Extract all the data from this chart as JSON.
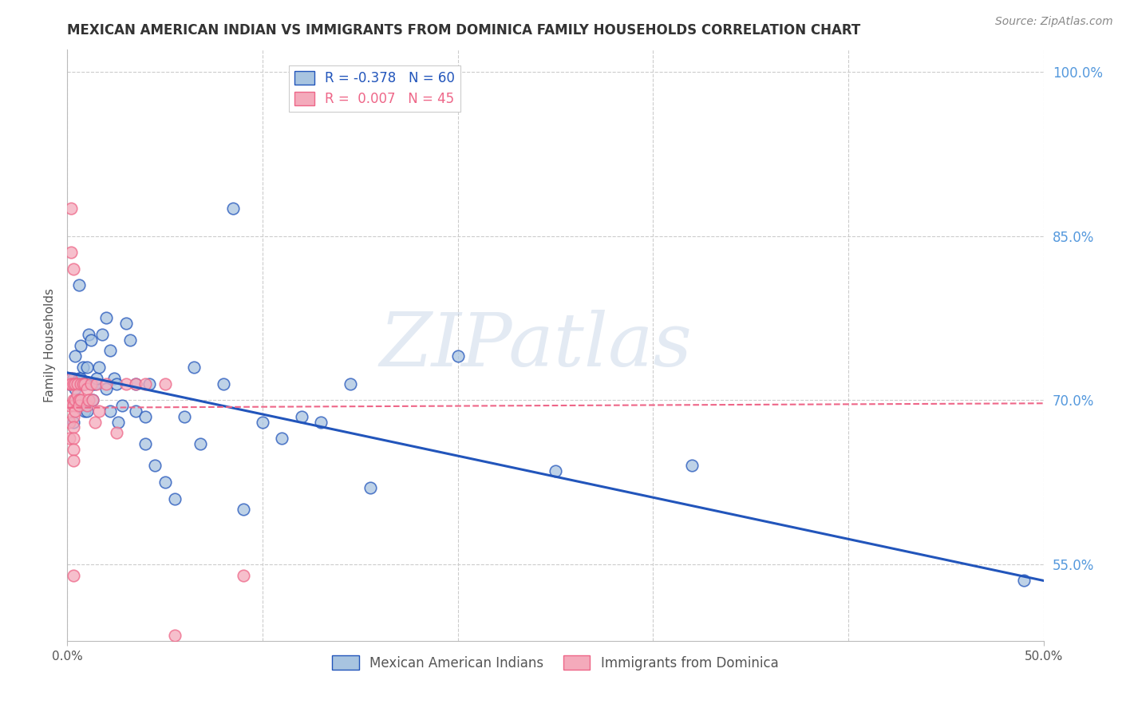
{
  "title": "MEXICAN AMERICAN INDIAN VS IMMIGRANTS FROM DOMINICA FAMILY HOUSEHOLDS CORRELATION CHART",
  "source": "Source: ZipAtlas.com",
  "ylabel": "Family Households",
  "watermark": "ZIPatlas",
  "legend_blue_r": "-0.378",
  "legend_blue_n": "60",
  "legend_pink_r": "0.007",
  "legend_pink_n": "45",
  "blue_color": "#A8C4E0",
  "pink_color": "#F4AABB",
  "blue_line_color": "#2255BB",
  "pink_line_color": "#EE6688",
  "grid_color": "#CCCCCC",
  "title_color": "#333333",
  "right_axis_color": "#5599DD",
  "blue_scatter": [
    [
      0.001,
      0.715
    ],
    [
      0.002,
      0.72
    ],
    [
      0.003,
      0.68
    ],
    [
      0.003,
      0.72
    ],
    [
      0.004,
      0.74
    ],
    [
      0.004,
      0.71
    ],
    [
      0.005,
      0.7
    ],
    [
      0.005,
      0.715
    ],
    [
      0.006,
      0.805
    ],
    [
      0.006,
      0.72
    ],
    [
      0.007,
      0.75
    ],
    [
      0.007,
      0.72
    ],
    [
      0.008,
      0.715
    ],
    [
      0.008,
      0.73
    ],
    [
      0.009,
      0.715
    ],
    [
      0.009,
      0.69
    ],
    [
      0.01,
      0.73
    ],
    [
      0.01,
      0.69
    ],
    [
      0.011,
      0.76
    ],
    [
      0.012,
      0.755
    ],
    [
      0.013,
      0.715
    ],
    [
      0.013,
      0.7
    ],
    [
      0.014,
      0.715
    ],
    [
      0.015,
      0.72
    ],
    [
      0.016,
      0.73
    ],
    [
      0.018,
      0.76
    ],
    [
      0.02,
      0.775
    ],
    [
      0.02,
      0.71
    ],
    [
      0.022,
      0.745
    ],
    [
      0.022,
      0.69
    ],
    [
      0.024,
      0.72
    ],
    [
      0.025,
      0.715
    ],
    [
      0.026,
      0.68
    ],
    [
      0.028,
      0.695
    ],
    [
      0.03,
      0.77
    ],
    [
      0.032,
      0.755
    ],
    [
      0.035,
      0.715
    ],
    [
      0.035,
      0.69
    ],
    [
      0.04,
      0.685
    ],
    [
      0.04,
      0.66
    ],
    [
      0.042,
      0.715
    ],
    [
      0.045,
      0.64
    ],
    [
      0.05,
      0.625
    ],
    [
      0.055,
      0.61
    ],
    [
      0.06,
      0.685
    ],
    [
      0.065,
      0.73
    ],
    [
      0.068,
      0.66
    ],
    [
      0.08,
      0.715
    ],
    [
      0.085,
      0.875
    ],
    [
      0.09,
      0.6
    ],
    [
      0.1,
      0.68
    ],
    [
      0.11,
      0.665
    ],
    [
      0.12,
      0.685
    ],
    [
      0.13,
      0.68
    ],
    [
      0.145,
      0.715
    ],
    [
      0.155,
      0.62
    ],
    [
      0.2,
      0.74
    ],
    [
      0.25,
      0.635
    ],
    [
      0.32,
      0.64
    ],
    [
      0.49,
      0.535
    ]
  ],
  "pink_scatter": [
    [
      0.001,
      0.715
    ],
    [
      0.001,
      0.695
    ],
    [
      0.001,
      0.68
    ],
    [
      0.001,
      0.665
    ],
    [
      0.002,
      0.875
    ],
    [
      0.002,
      0.835
    ],
    [
      0.002,
      0.72
    ],
    [
      0.002,
      0.715
    ],
    [
      0.003,
      0.82
    ],
    [
      0.003,
      0.715
    ],
    [
      0.003,
      0.7
    ],
    [
      0.003,
      0.695
    ],
    [
      0.003,
      0.685
    ],
    [
      0.003,
      0.675
    ],
    [
      0.003,
      0.665
    ],
    [
      0.003,
      0.655
    ],
    [
      0.003,
      0.645
    ],
    [
      0.003,
      0.54
    ],
    [
      0.004,
      0.715
    ],
    [
      0.004,
      0.7
    ],
    [
      0.004,
      0.69
    ],
    [
      0.005,
      0.715
    ],
    [
      0.005,
      0.705
    ],
    [
      0.006,
      0.7
    ],
    [
      0.006,
      0.695
    ],
    [
      0.007,
      0.715
    ],
    [
      0.007,
      0.7
    ],
    [
      0.008,
      0.715
    ],
    [
      0.009,
      0.715
    ],
    [
      0.01,
      0.71
    ],
    [
      0.01,
      0.695
    ],
    [
      0.011,
      0.7
    ],
    [
      0.012,
      0.715
    ],
    [
      0.013,
      0.7
    ],
    [
      0.014,
      0.68
    ],
    [
      0.015,
      0.715
    ],
    [
      0.016,
      0.69
    ],
    [
      0.02,
      0.715
    ],
    [
      0.025,
      0.67
    ],
    [
      0.03,
      0.715
    ],
    [
      0.035,
      0.715
    ],
    [
      0.04,
      0.715
    ],
    [
      0.05,
      0.715
    ],
    [
      0.055,
      0.485
    ],
    [
      0.09,
      0.54
    ]
  ],
  "xlim": [
    0.0,
    0.5
  ],
  "ylim": [
    0.48,
    1.02
  ],
  "ytick_right_positions": [
    1.0,
    0.85,
    0.7,
    0.55
  ],
  "right_ytick_labels": [
    "100.0%",
    "85.0%",
    "70.0%",
    "55.0%"
  ],
  "xtick_positions": [
    0.0,
    0.1,
    0.2,
    0.3,
    0.4,
    0.5
  ],
  "blue_trendline_x": [
    0.0,
    0.5
  ],
  "blue_trendline_y": [
    0.725,
    0.535
  ],
  "pink_trendline_x": [
    0.0,
    0.5
  ],
  "pink_trendline_y": [
    0.693,
    0.697
  ]
}
